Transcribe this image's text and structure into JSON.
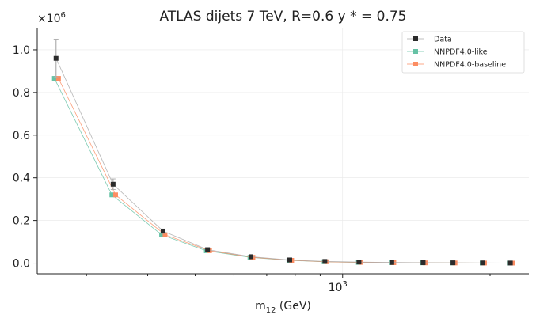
{
  "chart_data": {
    "type": "line",
    "title": "ATLAS dijets 7 TeV, R=0.6 y * = 0.75",
    "xlabel": "m",
    "xlabel_sub": "12",
    "xlabel_suffix": " (GeV)",
    "ylabel": "",
    "y_multiplier_base": "×10",
    "y_multiplier_exp": "6",
    "x_scale": "log",
    "xlim": [
      238,
      2400
    ],
    "ylim": [
      -0.05,
      1.1
    ],
    "y_ticks": [
      0.0,
      0.2,
      0.4,
      0.6,
      0.8,
      1.0
    ],
    "y_tick_labels": [
      "0.0",
      "0.2",
      "0.4",
      "0.6",
      "0.8",
      "1.0"
    ],
    "x_major_ticks": [
      1000
    ],
    "x_major_labels_base": [
      "10"
    ],
    "x_major_labels_exp": [
      "3"
    ],
    "x_minor_ticks": [
      300,
      400,
      500,
      600,
      700,
      800,
      900,
      2000
    ],
    "grid": true,
    "legend_position": "top-right",
    "series": [
      {
        "name": "Data",
        "color": "#2b2b2b",
        "line_color": "#aaaaaa",
        "x": [
          260,
          340,
          430,
          530,
          650,
          780,
          920,
          1080,
          1260,
          1460,
          1680,
          1930,
          2200
        ],
        "y": [
          0.96,
          0.37,
          0.15,
          0.063,
          0.03,
          0.015,
          0.008,
          0.005,
          0.003,
          0.002,
          0.0015,
          0.001,
          0.0005
        ],
        "yerr": [
          0.09,
          0.025,
          0.01,
          0.004,
          0.002,
          0.001,
          0.0005,
          0.0003,
          0.0002,
          0.0002,
          0.0001,
          0.0001,
          0.0001
        ]
      },
      {
        "name": "NNPDF4.0-like",
        "color": "#66c2a5",
        "line_color": "#66c2a5",
        "x": [
          258,
          338,
          427,
          527,
          647,
          777,
          917,
          1077,
          1257,
          1457,
          1677,
          1927,
          2197
        ],
        "y": [
          0.866,
          0.32,
          0.133,
          0.058,
          0.027,
          0.013,
          0.0065,
          0.0035,
          0.002,
          0.0012,
          0.0007,
          0.0004,
          0.0002
        ]
      },
      {
        "name": "NNPDF4.0-baseline",
        "color": "#fc8d62",
        "line_color": "#fc8d62",
        "x": [
          263,
          344,
          434,
          535,
          656,
          787,
          928,
          1090,
          1272,
          1474,
          1696,
          1948,
          2220
        ],
        "y": [
          0.866,
          0.32,
          0.133,
          0.058,
          0.027,
          0.013,
          0.0065,
          0.0035,
          0.002,
          0.0012,
          0.0007,
          0.0004,
          0.0002
        ]
      }
    ]
  }
}
